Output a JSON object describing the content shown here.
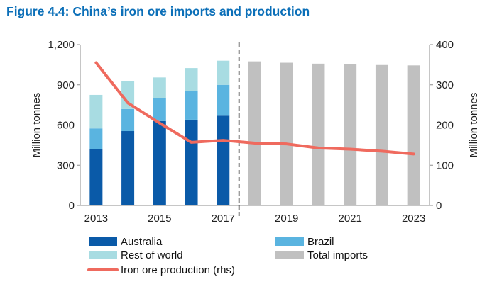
{
  "figure": {
    "title": "Figure 4.4: China’s iron ore imports and production"
  },
  "chart_data": {
    "type": "bar",
    "title": "Figure 4.4: China’s iron ore imports and production",
    "categories": [
      "2013",
      "2014",
      "2015",
      "2016",
      "2017",
      "2018",
      "2019",
      "2020",
      "2021",
      "2022",
      "2023"
    ],
    "x_tick_labels": [
      "2013",
      "2015",
      "2017",
      "2019",
      "2021",
      "2023"
    ],
    "ylabel": "Million tonnes",
    "ylabel_right": "Million tonnes",
    "ylim": [
      0,
      1200
    ],
    "ylim_right": [
      0,
      400
    ],
    "yticks": [
      0,
      300,
      600,
      900,
      1200
    ],
    "yticks_labels": [
      "0",
      "300",
      "600",
      "900",
      "1,200"
    ],
    "yticks_right": [
      0,
      100,
      200,
      300,
      400
    ],
    "yticks_right_labels": [
      "0",
      "100",
      "200",
      "300",
      "400"
    ],
    "grid": false,
    "forecast_divider_after": "2017",
    "series": [
      {
        "name": "Australia",
        "type": "bar",
        "stack": "actual",
        "axis": "left",
        "color": "#0a5aa8",
        "values": [
          420,
          555,
          630,
          640,
          670,
          null,
          null,
          null,
          null,
          null,
          null
        ]
      },
      {
        "name": "Brazil",
        "type": "bar",
        "stack": "actual",
        "axis": "left",
        "color": "#5ab4e0",
        "values": [
          155,
          165,
          170,
          215,
          230,
          null,
          null,
          null,
          null,
          null,
          null
        ]
      },
      {
        "name": "Rest of world",
        "type": "bar",
        "stack": "actual",
        "axis": "left",
        "color": "#a8dce2",
        "values": [
          250,
          210,
          155,
          170,
          180,
          null,
          null,
          null,
          null,
          null,
          null
        ]
      },
      {
        "name": "Total imports",
        "type": "bar",
        "stack": "forecast",
        "axis": "left",
        "color": "#c0c0c0",
        "values": [
          null,
          null,
          null,
          null,
          null,
          1075,
          1065,
          1058,
          1052,
          1048,
          1045
        ]
      },
      {
        "name": "Iron ore production (rhs)",
        "type": "line",
        "axis": "right",
        "color": "#ef6a5e",
        "values": [
          355,
          255,
          205,
          157,
          162,
          155,
          153,
          143,
          140,
          135,
          128
        ]
      }
    ]
  }
}
